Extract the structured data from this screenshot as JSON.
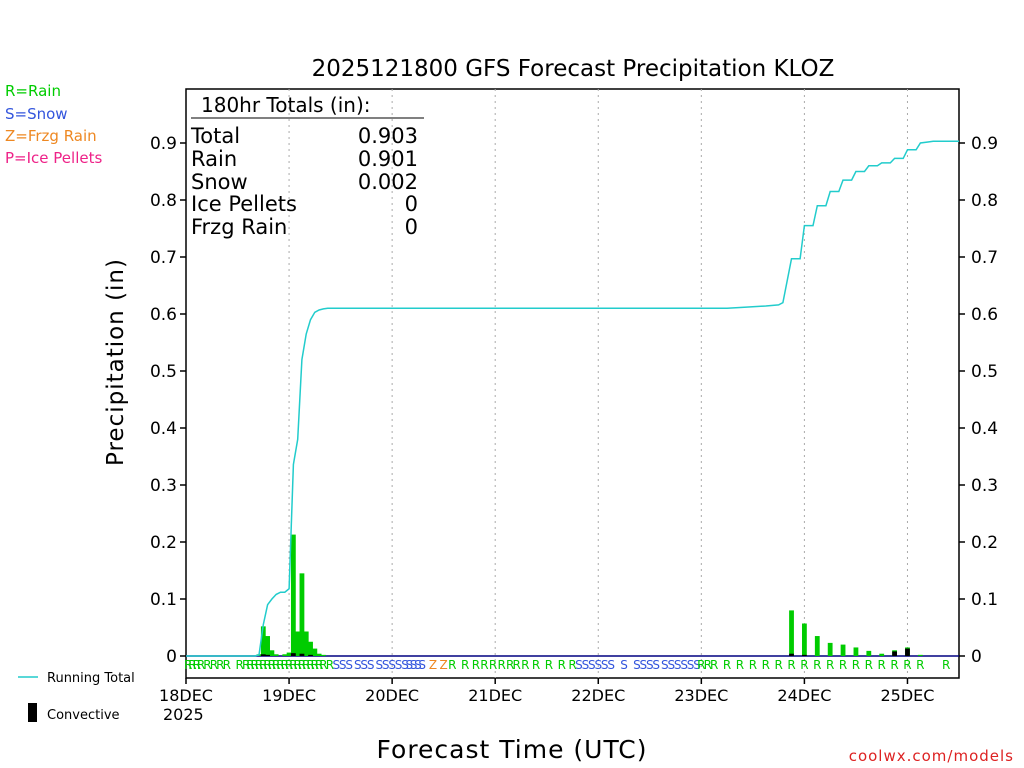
{
  "chart_data": {
    "type": "bar",
    "title": "2025121800 GFS Forecast Precipitation KLOZ",
    "xlabel": "Forecast Time (UTC)",
    "ylabel": "Precipitation (in)",
    "ylim": [
      0,
      1.0
    ],
    "xlim_hours": [
      0,
      180
    ],
    "yticks": [
      0,
      0.1,
      0.2,
      0.3,
      0.4,
      0.5,
      0.6,
      0.7,
      0.8,
      0.9
    ],
    "ytick_labels": [
      "0",
      "0.1",
      "0.2",
      "0.3",
      "0.4",
      "0.5",
      "0.6",
      "0.7",
      "0.8",
      "0.9"
    ],
    "xticks": [
      {
        "hour": 0,
        "label": "18DEC"
      },
      {
        "hour": 24,
        "label": "19DEC"
      },
      {
        "hour": 48,
        "label": "20DEC"
      },
      {
        "hour": 72,
        "label": "21DEC"
      },
      {
        "hour": 96,
        "label": "22DEC"
      },
      {
        "hour": 120,
        "label": "23DEC"
      },
      {
        "hour": 144,
        "label": "24DEC"
      },
      {
        "hour": 168,
        "label": "25DEC"
      }
    ],
    "year_label": "2025",
    "grid": "vertical dotted at day boundaries",
    "legend": {
      "top_left": [
        {
          "text": "R=Rain",
          "color": "#00cc00"
        },
        {
          "text": "S=Snow",
          "color": "#3355dd"
        },
        {
          "text": "Z=Frzg Rain",
          "color": "#ee8822"
        },
        {
          "text": "P=Ice Pellets",
          "color": "#ee2288"
        }
      ],
      "bottom_left": [
        {
          "text": "Running Total",
          "color": "#22cccc"
        },
        {
          "text": "Convective",
          "color": "#000000"
        }
      ]
    },
    "totals": {
      "header": "180hr Totals (in):",
      "rows": [
        {
          "label": "Total",
          "value": "0.903"
        },
        {
          "label": "Rain",
          "value": "0.901"
        },
        {
          "label": "Snow",
          "value": "0.002"
        },
        {
          "label": "Ice Pellets",
          "value": "0"
        },
        {
          "label": "Frzg Rain",
          "value": "0"
        }
      ]
    },
    "credit": "coolwx.com/models",
    "series": [
      {
        "name": "Precipitation",
        "color": "#00cc00",
        "points": [
          [
            17,
            0.003
          ],
          [
            18,
            0.052
          ],
          [
            19,
            0.035
          ],
          [
            20,
            0.01
          ],
          [
            21,
            0.003
          ],
          [
            23,
            0.003
          ],
          [
            24,
            0.006
          ],
          [
            25,
            0.213
          ],
          [
            26,
            0.043
          ],
          [
            27,
            0.145
          ],
          [
            28,
            0.043
          ],
          [
            29,
            0.025
          ],
          [
            30,
            0.013
          ],
          [
            31,
            0.004
          ],
          [
            32,
            0.002
          ],
          [
            141,
            0.08
          ],
          [
            144,
            0.057
          ],
          [
            147,
            0.035
          ],
          [
            150,
            0.023
          ],
          [
            153,
            0.02
          ],
          [
            156,
            0.015
          ],
          [
            159,
            0.009
          ],
          [
            162,
            0.004
          ],
          [
            165,
            0.01
          ],
          [
            168,
            0.015
          ],
          [
            171,
            0.002
          ]
        ]
      },
      {
        "name": "Convective",
        "color": "#000000",
        "points": [
          [
            18,
            0.003
          ],
          [
            19,
            0.002
          ],
          [
            25,
            0.005
          ],
          [
            27,
            0.004
          ],
          [
            29,
            0.002
          ],
          [
            141,
            0.004
          ],
          [
            144,
            0.002
          ],
          [
            165,
            0.008
          ],
          [
            168,
            0.013
          ]
        ]
      },
      {
        "name": "Running Total",
        "color": "#22cccc",
        "points": [
          [
            0,
            0
          ],
          [
            16,
            0
          ],
          [
            17,
            0.002
          ],
          [
            18,
            0.055
          ],
          [
            19,
            0.09
          ],
          [
            20,
            0.1
          ],
          [
            21,
            0.108
          ],
          [
            22,
            0.112
          ],
          [
            23,
            0.112
          ],
          [
            24,
            0.118
          ],
          [
            25,
            0.336
          ],
          [
            26,
            0.38
          ],
          [
            27,
            0.52
          ],
          [
            28,
            0.565
          ],
          [
            29,
            0.59
          ],
          [
            30,
            0.603
          ],
          [
            31,
            0.607
          ],
          [
            32,
            0.609
          ],
          [
            33,
            0.61
          ],
          [
            60,
            0.61
          ],
          [
            90,
            0.61
          ],
          [
            120,
            0.61
          ],
          [
            126,
            0.61
          ],
          [
            130,
            0.612
          ],
          [
            135,
            0.614
          ],
          [
            138,
            0.616
          ],
          [
            139,
            0.62
          ],
          [
            141,
            0.697
          ],
          [
            143,
            0.697
          ],
          [
            144,
            0.755
          ],
          [
            146,
            0.755
          ],
          [
            147,
            0.79
          ],
          [
            149,
            0.79
          ],
          [
            150,
            0.815
          ],
          [
            152,
            0.815
          ],
          [
            153,
            0.835
          ],
          [
            155,
            0.835
          ],
          [
            156,
            0.85
          ],
          [
            158,
            0.85
          ],
          [
            159,
            0.86
          ],
          [
            161,
            0.86
          ],
          [
            162,
            0.865
          ],
          [
            164,
            0.865
          ],
          [
            165,
            0.873
          ],
          [
            167,
            0.873
          ],
          [
            168,
            0.888
          ],
          [
            170,
            0.888
          ],
          [
            171,
            0.9
          ],
          [
            173,
            0.902
          ],
          [
            174,
            0.903
          ],
          [
            180,
            0.903
          ]
        ]
      }
    ],
    "ptype_markers": {
      "colors": {
        "R": "#00cc00",
        "S": "#3355dd",
        "Z": "#ee8822",
        "P": "#ee2288"
      },
      "items": [
        [
          "R",
          0.5
        ],
        [
          "R",
          1.5
        ],
        [
          "R",
          2.5
        ],
        [
          "R",
          3.5
        ],
        [
          "R",
          5
        ],
        [
          "R",
          6.5
        ],
        [
          "R",
          8
        ],
        [
          "R",
          9.5
        ],
        [
          "R",
          12.5
        ],
        [
          "R",
          14
        ],
        [
          "R",
          15
        ],
        [
          "R",
          16
        ],
        [
          "R",
          17
        ],
        [
          "R",
          18
        ],
        [
          "R",
          19
        ],
        [
          "R",
          20
        ],
        [
          "R",
          21
        ],
        [
          "R",
          22
        ],
        [
          "R",
          23
        ],
        [
          "R",
          24
        ],
        [
          "R",
          25
        ],
        [
          "R",
          26
        ],
        [
          "R",
          27
        ],
        [
          "R",
          28
        ],
        [
          "R",
          29
        ],
        [
          "R",
          30
        ],
        [
          "R",
          31
        ],
        [
          "R",
          32
        ],
        [
          "R",
          33.5
        ],
        [
          "S",
          35
        ],
        [
          "S",
          36.5
        ],
        [
          "S",
          38
        ],
        [
          "S",
          40
        ],
        [
          "S",
          41.5
        ],
        [
          "S",
          43
        ],
        [
          "S",
          45
        ],
        [
          "S",
          46.5
        ],
        [
          "S",
          48
        ],
        [
          "S",
          49.5
        ],
        [
          "S",
          51
        ],
        [
          "S",
          52
        ],
        [
          "S",
          53
        ],
        [
          "S",
          54
        ],
        [
          "S",
          55
        ],
        [
          "Z",
          57.5
        ],
        [
          "Z",
          60
        ],
        [
          "R",
          62
        ],
        [
          "R",
          65
        ],
        [
          "R",
          67.5
        ],
        [
          "R",
          69.5
        ],
        [
          "R",
          71.5
        ],
        [
          "R",
          73.5
        ],
        [
          "R",
          75.5
        ],
        [
          "R",
          77
        ],
        [
          "R",
          79
        ],
        [
          "R",
          81.5
        ],
        [
          "R",
          84.5
        ],
        [
          "R",
          87.5
        ],
        [
          "R",
          90
        ],
        [
          "S",
          91.5
        ],
        [
          "S",
          93
        ],
        [
          "S",
          94.5
        ],
        [
          "S",
          96
        ],
        [
          "S",
          97.5
        ],
        [
          "S",
          99
        ],
        [
          "S",
          102
        ],
        [
          "S",
          105
        ],
        [
          "S",
          106.5
        ],
        [
          "S",
          108
        ],
        [
          "S",
          109.5
        ],
        [
          "S",
          111.5
        ],
        [
          "S",
          113
        ],
        [
          "S",
          114.5
        ],
        [
          "S",
          116
        ],
        [
          "S",
          117.5
        ],
        [
          "S",
          119
        ],
        [
          "R",
          120
        ],
        [
          "R",
          121.5
        ],
        [
          "R",
          123
        ],
        [
          "R",
          126
        ],
        [
          "R",
          129
        ],
        [
          "R",
          132
        ],
        [
          "R",
          135
        ],
        [
          "R",
          138
        ],
        [
          "R",
          141
        ],
        [
          "R",
          144
        ],
        [
          "R",
          147
        ],
        [
          "R",
          150
        ],
        [
          "R",
          153
        ],
        [
          "R",
          156
        ],
        [
          "R",
          159
        ],
        [
          "R",
          162
        ],
        [
          "R",
          165
        ],
        [
          "R",
          168
        ],
        [
          "R",
          171
        ],
        [
          "R",
          177
        ]
      ]
    }
  }
}
